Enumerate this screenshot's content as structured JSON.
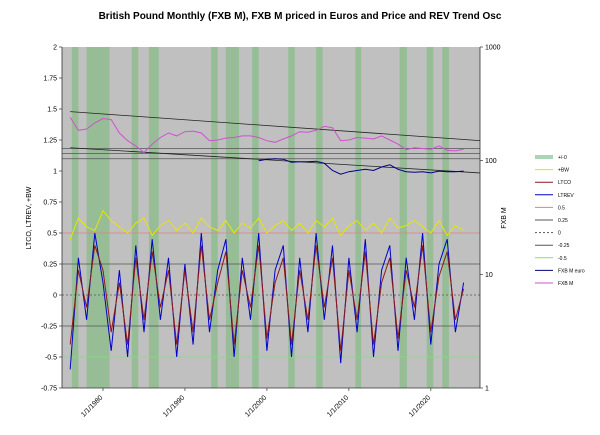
{
  "chart_data": {
    "type": "line",
    "title": "British Pound Monthly (FXB M), FXB M priced in Euros and Price and REV Trend Osc",
    "ylabel_left": "LTCO, LTREV, +BW",
    "ylabel_right": "FXB M",
    "y_left": {
      "min": -0.75,
      "max": 2,
      "ticks": [
        "2",
        "1.75",
        "1.5",
        "1.25",
        "1",
        "0.75",
        "0.5",
        "0.25",
        "0",
        "-0.25",
        "-0.5",
        "-0.75"
      ]
    },
    "y_right": {
      "scale": "log",
      "min": 1,
      "max": 1000,
      "ticks": [
        "1000",
        "100",
        "10",
        "1"
      ]
    },
    "x": {
      "min": "1975-01",
      "max": "2025-12",
      "ticks": [
        "1/1/1980",
        "1/1/1990",
        "1/1/2000",
        "1/1/2010",
        "1/1/2020"
      ]
    },
    "reference_lines": [
      {
        "name": "0.5",
        "value": 0.5,
        "color": "#e08080",
        "style": "solid"
      },
      {
        "name": "0.25",
        "value": 0.25,
        "color": "#555555",
        "style": "solid"
      },
      {
        "name": "0",
        "value": 0,
        "color": "#555555",
        "style": "dashed"
      },
      {
        "name": "-0.25",
        "value": -0.25,
        "color": "#555555",
        "style": "solid"
      },
      {
        "name": "-0.5",
        "value": -0.5,
        "color": "#80e080",
        "style": "solid"
      }
    ],
    "shaded_periods": [
      [
        1976.2,
        1977.0
      ],
      [
        1978.0,
        1980.8
      ],
      [
        1983.5,
        1984.3
      ],
      [
        1985.6,
        1986.8
      ],
      [
        1993.2,
        1994.0
      ],
      [
        1995.0,
        1996.6
      ],
      [
        1998.2,
        1999.0
      ],
      [
        2002.6,
        2003.4
      ],
      [
        2006.0,
        2006.8
      ],
      [
        2010.8,
        2011.5
      ],
      [
        2016.2,
        2017.1
      ],
      [
        2019.5,
        2020.3
      ],
      [
        2021.4,
        2022.2
      ]
    ],
    "trend_lines": [
      {
        "from": [
          1976.0,
          270
        ],
        "to": [
          2026.0,
          150
        ]
      },
      {
        "from": [
          1976.0,
          130
        ],
        "to": [
          2026.0,
          78
        ]
      }
    ],
    "price_horizontal_lines": [
      128,
      116,
      104
    ],
    "legend": [
      "+/-0",
      "+BW",
      "LTCO",
      "LTREV",
      "0.5",
      "0.25",
      "0",
      "-0.25",
      "-0.5",
      "FXB M euro",
      "FXB M"
    ],
    "legend_placement": "right",
    "series": [
      {
        "name": "FXB M",
        "axis": "right",
        "color": "#d24fd2",
        "x": [
          1976.0,
          1977.0,
          1978.0,
          1979.0,
          1980.0,
          1981.0,
          1982.0,
          1983.0,
          1984.0,
          1985.0,
          1986.0,
          1987.0,
          1988.0,
          1989.0,
          1990.0,
          1991.0,
          1992.0,
          1993.0,
          1994.0,
          1995.0,
          1996.0,
          1997.0,
          1998.0,
          1999.0,
          2000.0,
          2001.0,
          2002.0,
          2003.0,
          2004.0,
          2005.0,
          2006.0,
          2007.0,
          2008.0,
          2009.0,
          2010.0,
          2011.0,
          2012.0,
          2013.0,
          2014.0,
          2015.0,
          2016.0,
          2017.0,
          2018.0,
          2019.0,
          2020.0,
          2021.0,
          2022.0,
          2023.0,
          2024.0
        ],
        "y": [
          240,
          185,
          190,
          215,
          235,
          230,
          175,
          150,
          135,
          118,
          140,
          160,
          175,
          165,
          180,
          182,
          175,
          150,
          152,
          158,
          160,
          165,
          165,
          160,
          150,
          145,
          155,
          165,
          180,
          178,
          185,
          200,
          195,
          150,
          152,
          160,
          158,
          155,
          165,
          152,
          140,
          125,
          130,
          128,
          126,
          135,
          123,
          122,
          126
        ]
      },
      {
        "name": "FXB M euro",
        "axis": "right",
        "color": "#000080",
        "x": [
          1999.0,
          2000.0,
          2001.0,
          2002.0,
          2003.0,
          2004.0,
          2005.0,
          2006.0,
          2007.0,
          2008.0,
          2009.0,
          2010.0,
          2011.0,
          2012.0,
          2013.0,
          2014.0,
          2015.0,
          2016.0,
          2017.0,
          2018.0,
          2019.0,
          2020.0,
          2021.0,
          2022.0,
          2023.0,
          2024.0
        ],
        "y": [
          100,
          103,
          104,
          103,
          97,
          98,
          98,
          99,
          95,
          82,
          76,
          80,
          82,
          84,
          82,
          88,
          92,
          84,
          80,
          79,
          80,
          78,
          81,
          80,
          80,
          81
        ]
      },
      {
        "name": "+BW",
        "axis": "left",
        "color": "#e6e600",
        "x": [
          1976.0,
          1977.0,
          1978.0,
          1979.0,
          1980.0,
          1981.0,
          1982.0,
          1983.0,
          1984.0,
          1985.0,
          1986.0,
          1987.0,
          1988.0,
          1989.0,
          1990.0,
          1991.0,
          1992.0,
          1993.0,
          1994.0,
          1995.0,
          1996.0,
          1997.0,
          1998.0,
          1999.0,
          2000.0,
          2001.0,
          2002.0,
          2003.0,
          2004.0,
          2005.0,
          2006.0,
          2007.0,
          2008.0,
          2009.0,
          2010.0,
          2011.0,
          2012.0,
          2013.0,
          2014.0,
          2015.0,
          2016.0,
          2017.0,
          2018.0,
          2019.0,
          2020.0,
          2021.0,
          2022.0,
          2023.0,
          2024.0
        ],
        "y": [
          0.45,
          0.62,
          0.55,
          0.52,
          0.68,
          0.6,
          0.55,
          0.5,
          0.58,
          0.62,
          0.48,
          0.56,
          0.6,
          0.52,
          0.58,
          0.5,
          0.62,
          0.55,
          0.52,
          0.6,
          0.5,
          0.58,
          0.54,
          0.62,
          0.5,
          0.56,
          0.6,
          0.52,
          0.58,
          0.5,
          0.6,
          0.55,
          0.62,
          0.48,
          0.56,
          0.6,
          0.52,
          0.58,
          0.5,
          0.62,
          0.54,
          0.56,
          0.6,
          0.55,
          0.5,
          0.6,
          0.48,
          0.56,
          0.52
        ]
      },
      {
        "name": "LTREV",
        "axis": "left",
        "color": "#0000cc",
        "x": [
          1976.0,
          1977.0,
          1978.0,
          1979.0,
          1980.0,
          1981.0,
          1982.0,
          1983.0,
          1984.0,
          1985.0,
          1986.0,
          1987.0,
          1988.0,
          1989.0,
          1990.0,
          1991.0,
          1992.0,
          1993.0,
          1994.0,
          1995.0,
          1996.0,
          1997.0,
          1998.0,
          1999.0,
          2000.0,
          2001.0,
          2002.0,
          2003.0,
          2004.0,
          2005.0,
          2006.0,
          2007.0,
          2008.0,
          2009.0,
          2010.0,
          2011.0,
          2012.0,
          2013.0,
          2014.0,
          2015.0,
          2016.0,
          2017.0,
          2018.0,
          2019.0,
          2020.0,
          2021.0,
          2022.0,
          2023.0,
          2024.0
        ],
        "y": [
          -0.6,
          0.3,
          -0.2,
          0.5,
          0.1,
          -0.45,
          0.2,
          -0.5,
          0.4,
          -0.3,
          0.45,
          -0.2,
          0.3,
          -0.5,
          0.25,
          -0.4,
          0.5,
          -0.3,
          0.2,
          0.45,
          -0.5,
          0.3,
          -0.2,
          0.5,
          -0.45,
          0.2,
          0.4,
          -0.5,
          0.3,
          -0.3,
          0.5,
          -0.2,
          0.4,
          -0.55,
          0.3,
          -0.3,
          0.45,
          -0.5,
          0.2,
          0.4,
          -0.45,
          0.3,
          -0.2,
          0.5,
          -0.4,
          0.25,
          0.45,
          -0.3,
          0.1
        ]
      },
      {
        "name": "LTCO",
        "axis": "left",
        "color": "#8b1a1a",
        "x": [
          1976.0,
          1977.0,
          1978.0,
          1979.0,
          1980.0,
          1981.0,
          1982.0,
          1983.0,
          1984.0,
          1985.0,
          1986.0,
          1987.0,
          1988.0,
          1989.0,
          1990.0,
          1991.0,
          1992.0,
          1993.0,
          1994.0,
          1995.0,
          1996.0,
          1997.0,
          1998.0,
          1999.0,
          2000.0,
          2001.0,
          2002.0,
          2003.0,
          2004.0,
          2005.0,
          2006.0,
          2007.0,
          2008.0,
          2009.0,
          2010.0,
          2011.0,
          2012.0,
          2013.0,
          2014.0,
          2015.0,
          2016.0,
          2017.0,
          2018.0,
          2019.0,
          2020.0,
          2021.0,
          2022.0,
          2023.0,
          2024.0
        ],
        "y": [
          -0.4,
          0.2,
          -0.1,
          0.4,
          0.2,
          -0.3,
          0.1,
          -0.4,
          0.3,
          -0.2,
          0.35,
          -0.1,
          0.2,
          -0.4,
          0.2,
          -0.3,
          0.4,
          -0.2,
          0.1,
          0.35,
          -0.4,
          0.2,
          -0.1,
          0.4,
          -0.35,
          0.1,
          0.3,
          -0.4,
          0.2,
          -0.2,
          0.4,
          -0.1,
          0.3,
          -0.45,
          0.2,
          -0.2,
          0.35,
          -0.4,
          0.1,
          0.3,
          -0.35,
          0.2,
          -0.1,
          0.4,
          -0.3,
          0.15,
          0.35,
          -0.2,
          0.05
        ]
      }
    ]
  }
}
